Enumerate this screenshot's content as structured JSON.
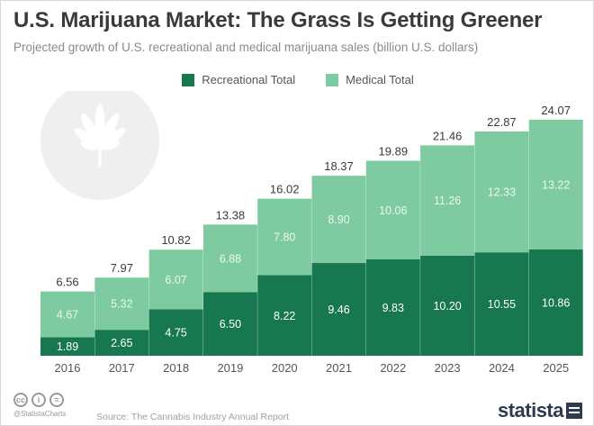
{
  "header": {
    "title": "U.S. Marijuana Market: The Grass Is Getting Greener",
    "subtitle": "Projected growth of U.S. recreational and medical marijuana sales (billion U.S. dollars)"
  },
  "colors": {
    "recreational": "#17784f",
    "medical": "#7ecba1",
    "label_on_dark": "#ffffff",
    "label_on_light": "#eaf7f0",
    "total_label": "#3a3a3a",
    "axis_text": "#555555",
    "leaf": "#ececec"
  },
  "chart_data": {
    "type": "bar",
    "stacked": true,
    "categories": [
      "2016",
      "2017",
      "2018",
      "2019",
      "2020",
      "2021",
      "2022",
      "2023",
      "2024",
      "2025"
    ],
    "series": [
      {
        "name": "Recreational Total",
        "values": [
          1.89,
          2.65,
          4.75,
          6.5,
          8.22,
          9.46,
          9.83,
          10.2,
          10.55,
          10.86
        ]
      },
      {
        "name": "Medical Total",
        "values": [
          4.67,
          5.32,
          6.07,
          6.88,
          7.8,
          8.9,
          10.06,
          11.26,
          12.33,
          13.22
        ]
      }
    ],
    "totals": [
      6.56,
      7.97,
      10.82,
      13.38,
      16.02,
      18.37,
      19.89,
      21.46,
      22.87,
      24.07
    ],
    "series_labels": [
      [
        "1.89",
        "2.65",
        "4.75",
        "6.50",
        "8.22",
        "9.46",
        "9.83",
        "10.20",
        "10.55",
        "10.86"
      ],
      [
        "4.67",
        "5.32",
        "6.07",
        "6.88",
        "7.80",
        "8.90",
        "10.06",
        "11.26",
        "12.33",
        "13.22"
      ]
    ],
    "total_labels": [
      "6.56",
      "7.97",
      "10.82",
      "13.38",
      "16.02",
      "18.37",
      "19.89",
      "21.46",
      "22.87",
      "24.07"
    ],
    "ylim": [
      0,
      24.07
    ],
    "grid": false,
    "legend_position": "top-center",
    "decoration_icon": "cannabis-leaf-icon"
  },
  "footer": {
    "license_icons": [
      "cc-icon",
      "by-icon",
      "equals-icon"
    ],
    "credit": "@StatistaCharts",
    "source": "Source: The Cannabis Industry Annual Report",
    "brand": "statista"
  }
}
